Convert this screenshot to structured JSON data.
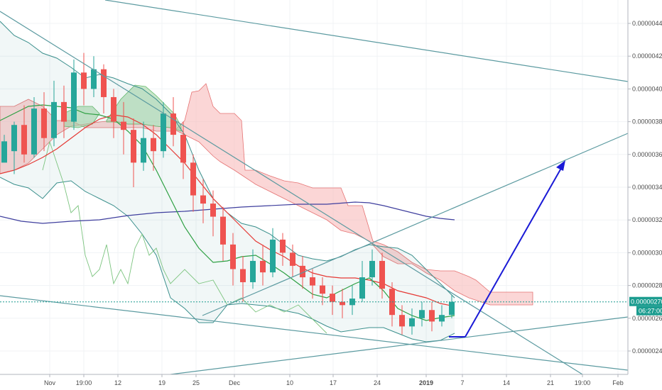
{
  "chart_data": {
    "type": "candlestick",
    "title": "",
    "xlabel": "",
    "ylabel": "",
    "y_axis_side": "right",
    "ylim": [
      2.3e-06,
      4.5e-06
    ],
    "grid": true,
    "legend": "none",
    "y_ticks": [
      "0.00000240",
      "0.00000260",
      "0.00000280",
      "0.00000300",
      "0.00000320",
      "0.00000340",
      "0.00000360",
      "0.00000380",
      "0.00000400",
      "0.00000420",
      "0.00000440"
    ],
    "x_ticks": [
      "Nov",
      "19:00",
      "12",
      "19",
      "25",
      "Dec",
      "10",
      "17",
      "24",
      "2019",
      "7",
      "14",
      "21",
      "19:00",
      "Feb"
    ],
    "current_price": "0.00000270",
    "countdown": "06:27:00",
    "colors": {
      "up": "#26a69a",
      "down": "#ef5350",
      "ma_fast": "#2ea043",
      "ma_slow": "#e53935",
      "ma_long": "#3f3f9e",
      "bollinger": "#3a8f8c",
      "cloud_bull": "#a5d6a7",
      "cloud_bear": "#f7b5b5",
      "trendline": "#5b9aa0",
      "arrow": "#1a1ad6",
      "price_line": "#1b9c8f"
    },
    "series": [
      {
        "type": "candles",
        "ohlc_approx": [
          [
            3.55,
            3.68,
            3.62,
            3.72
          ],
          [
            3.62,
            3.78,
            3.48,
            3.8
          ],
          [
            3.78,
            3.6,
            3.55,
            3.9
          ],
          [
            3.6,
            3.88,
            3.58,
            3.95
          ],
          [
            3.88,
            3.7,
            3.62,
            3.98
          ],
          [
            3.7,
            3.92,
            3.65,
            4.05
          ],
          [
            3.92,
            3.8,
            3.7,
            4.02
          ],
          [
            3.8,
            4.1,
            3.75,
            4.18
          ],
          [
            4.1,
            4.0,
            3.9,
            4.22
          ],
          [
            4.0,
            4.12,
            3.95,
            4.2
          ],
          [
            4.12,
            3.95,
            3.85,
            4.15
          ],
          [
            3.95,
            3.8,
            3.7,
            4.0
          ],
          [
            3.8,
            3.75,
            3.6,
            3.92
          ],
          [
            3.75,
            3.55,
            3.4,
            3.82
          ],
          [
            3.55,
            3.7,
            3.5,
            3.8
          ],
          [
            3.7,
            3.62,
            3.5,
            3.78
          ],
          [
            3.62,
            3.85,
            3.58,
            3.92
          ],
          [
            3.85,
            3.72,
            3.65,
            3.95
          ],
          [
            3.72,
            3.55,
            3.45,
            3.8
          ],
          [
            3.55,
            3.35,
            3.25,
            3.6
          ],
          [
            3.35,
            3.3,
            3.18,
            3.45
          ],
          [
            3.3,
            3.22,
            3.1,
            3.38
          ],
          [
            3.22,
            3.05,
            2.95,
            3.28
          ],
          [
            3.05,
            2.9,
            2.8,
            3.12
          ],
          [
            2.9,
            2.82,
            2.7,
            2.98
          ],
          [
            2.82,
            2.95,
            2.78,
            3.02
          ],
          [
            2.95,
            2.88,
            2.8,
            3.05
          ],
          [
            2.88,
            3.08,
            2.85,
            3.15
          ],
          [
            3.08,
            3.0,
            2.92,
            3.12
          ],
          [
            3.0,
            2.92,
            2.85,
            3.05
          ],
          [
            2.92,
            2.85,
            2.78,
            2.98
          ],
          [
            2.85,
            2.8,
            2.72,
            2.9
          ],
          [
            2.8,
            2.75,
            2.68,
            2.85
          ],
          [
            2.75,
            2.7,
            2.62,
            2.8
          ],
          [
            2.7,
            2.68,
            2.6,
            2.78
          ],
          [
            2.68,
            2.72,
            2.62,
            2.8
          ],
          [
            2.72,
            2.85,
            2.7,
            2.95
          ],
          [
            2.85,
            2.95,
            2.8,
            3.02
          ],
          [
            2.95,
            2.78,
            2.72,
            3.0
          ],
          [
            2.78,
            2.62,
            2.55,
            2.82
          ],
          [
            2.62,
            2.55,
            2.5,
            2.68
          ],
          [
            2.55,
            2.6,
            2.5,
            2.66
          ],
          [
            2.6,
            2.65,
            2.55,
            2.7
          ],
          [
            2.65,
            2.58,
            2.52,
            2.7
          ],
          [
            2.58,
            2.62,
            2.55,
            2.68
          ],
          [
            2.62,
            2.7,
            2.6,
            2.74
          ]
        ]
      }
    ]
  }
}
